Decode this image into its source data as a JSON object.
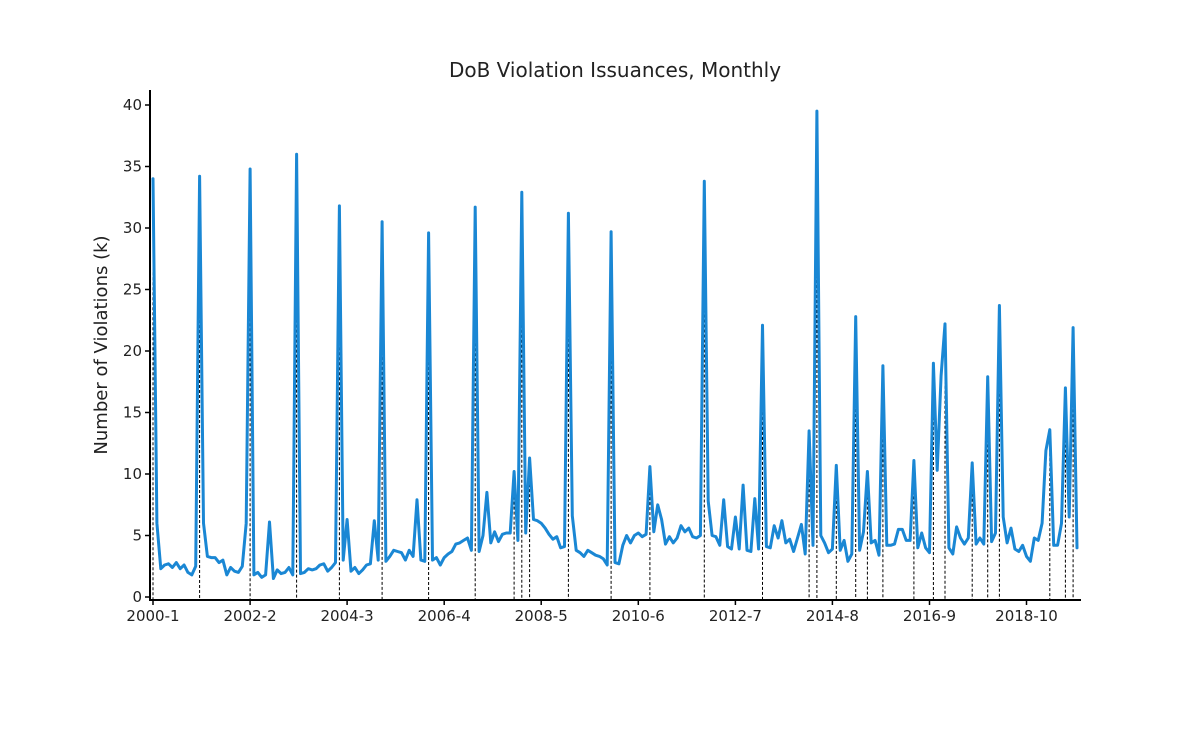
{
  "chart_data": {
    "type": "line",
    "title": "DoB Violation Issuances, Monthly",
    "xlabel": "",
    "ylabel": "Number of Violations (k)",
    "ylim": [
      0,
      41
    ],
    "y_ticks": [
      0,
      5,
      10,
      15,
      20,
      25,
      30,
      35,
      40
    ],
    "x_tick_labels": [
      "2000-1",
      "2002-2",
      "2004-3",
      "2006-4",
      "2008-5",
      "2010-6",
      "2012-7",
      "2014-8",
      "2016-9",
      "2018-10"
    ],
    "x_tick_months": [
      "2000-01",
      "2002-02",
      "2004-03",
      "2006-04",
      "2008-05",
      "2010-06",
      "2012-07",
      "2014-08",
      "2016-09",
      "2018-10"
    ],
    "line_color": "#1a87d4",
    "grid": false,
    "legend": "none",
    "series": [
      {
        "points": [
          [
            "2000-01",
            34
          ],
          [
            "2000-02",
            6
          ],
          [
            "2000-03",
            2.3
          ],
          [
            "2000-04",
            2.6
          ],
          [
            "2000-05",
            2.7
          ],
          [
            "2000-06",
            2.4
          ],
          [
            "2000-07",
            2.8
          ],
          [
            "2000-08",
            2.3
          ],
          [
            "2000-09",
            2.6
          ],
          [
            "2000-10",
            2.0
          ],
          [
            "2000-11",
            1.8
          ],
          [
            "2000-12",
            2.5
          ],
          [
            "2001-01",
            34.2
          ],
          [
            "2001-02",
            6
          ],
          [
            "2001-03",
            3.3
          ],
          [
            "2001-04",
            3.2
          ],
          [
            "2001-05",
            3.2
          ],
          [
            "2001-06",
            2.8
          ],
          [
            "2001-07",
            3.0
          ],
          [
            "2001-08",
            1.8
          ],
          [
            "2001-09",
            2.4
          ],
          [
            "2001-10",
            2.1
          ],
          [
            "2001-11",
            2.0
          ],
          [
            "2001-12",
            2.5
          ],
          [
            "2002-01",
            6
          ],
          [
            "2002-02",
            34.8
          ],
          [
            "2002-03",
            1.8
          ],
          [
            "2002-04",
            2.0
          ],
          [
            "2002-05",
            1.6
          ],
          [
            "2002-06",
            1.8
          ],
          [
            "2002-07",
            6.1
          ],
          [
            "2002-08",
            1.5
          ],
          [
            "2002-09",
            2.2
          ],
          [
            "2002-10",
            1.9
          ],
          [
            "2002-11",
            2.0
          ],
          [
            "2002-12",
            2.4
          ],
          [
            "2003-01",
            1.8
          ],
          [
            "2003-02",
            36
          ],
          [
            "2003-03",
            1.9
          ],
          [
            "2003-04",
            2.0
          ],
          [
            "2003-05",
            2.3
          ],
          [
            "2003-06",
            2.2
          ],
          [
            "2003-07",
            2.3
          ],
          [
            "2003-08",
            2.6
          ],
          [
            "2003-09",
            2.7
          ],
          [
            "2003-10",
            2.1
          ],
          [
            "2003-11",
            2.4
          ],
          [
            "2003-12",
            2.8
          ],
          [
            "2004-01",
            31.8
          ],
          [
            "2004-02",
            3.0
          ],
          [
            "2004-03",
            6.3
          ],
          [
            "2004-04",
            2.1
          ],
          [
            "2004-05",
            2.4
          ],
          [
            "2004-06",
            1.9
          ],
          [
            "2004-07",
            2.2
          ],
          [
            "2004-08",
            2.6
          ],
          [
            "2004-09",
            2.7
          ],
          [
            "2004-10",
            6.2
          ],
          [
            "2004-11",
            3.0
          ],
          [
            "2004-12",
            30.5
          ],
          [
            "2005-01",
            2.9
          ],
          [
            "2005-02",
            3.3
          ],
          [
            "2005-03",
            3.8
          ],
          [
            "2005-04",
            3.7
          ],
          [
            "2005-05",
            3.6
          ],
          [
            "2005-06",
            3.0
          ],
          [
            "2005-07",
            3.8
          ],
          [
            "2005-08",
            3.3
          ],
          [
            "2005-09",
            7.9
          ],
          [
            "2005-10",
            3.0
          ],
          [
            "2005-11",
            2.9
          ],
          [
            "2005-12",
            29.6
          ],
          [
            "2006-01",
            3.0
          ],
          [
            "2006-02",
            3.2
          ],
          [
            "2006-03",
            2.6
          ],
          [
            "2006-04",
            3.2
          ],
          [
            "2006-05",
            3.5
          ],
          [
            "2006-06",
            3.7
          ],
          [
            "2006-07",
            4.3
          ],
          [
            "2006-08",
            4.4
          ],
          [
            "2006-09",
            4.6
          ],
          [
            "2006-10",
            4.8
          ],
          [
            "2006-11",
            3.8
          ],
          [
            "2006-12",
            31.7
          ],
          [
            "2007-01",
            3.7
          ],
          [
            "2007-02",
            5.0
          ],
          [
            "2007-03",
            8.5
          ],
          [
            "2007-04",
            4.4
          ],
          [
            "2007-05",
            5.3
          ],
          [
            "2007-06",
            4.5
          ],
          [
            "2007-07",
            5.1
          ],
          [
            "2007-08",
            5.2
          ],
          [
            "2007-09",
            5.2
          ],
          [
            "2007-10",
            10.2
          ],
          [
            "2007-11",
            4.6
          ],
          [
            "2007-12",
            32.9
          ],
          [
            "2008-01",
            5.2
          ],
          [
            "2008-02",
            11.3
          ],
          [
            "2008-03",
            6.3
          ],
          [
            "2008-04",
            6.2
          ],
          [
            "2008-05",
            6.0
          ],
          [
            "2008-06",
            5.6
          ],
          [
            "2008-07",
            5.1
          ],
          [
            "2008-08",
            4.7
          ],
          [
            "2008-09",
            4.9
          ],
          [
            "2008-10",
            4.0
          ],
          [
            "2008-11",
            4.1
          ],
          [
            "2008-12",
            31.2
          ],
          [
            "2009-01",
            6.6
          ],
          [
            "2009-02",
            3.8
          ],
          [
            "2009-03",
            3.6
          ],
          [
            "2009-04",
            3.3
          ],
          [
            "2009-05",
            3.8
          ],
          [
            "2009-06",
            3.6
          ],
          [
            "2009-07",
            3.4
          ],
          [
            "2009-08",
            3.3
          ],
          [
            "2009-09",
            3.1
          ],
          [
            "2009-10",
            2.6
          ],
          [
            "2009-11",
            29.7
          ],
          [
            "2009-12",
            2.8
          ],
          [
            "2010-01",
            2.7
          ],
          [
            "2010-02",
            4.2
          ],
          [
            "2010-03",
            5.0
          ],
          [
            "2010-04",
            4.4
          ],
          [
            "2010-05",
            5.0
          ],
          [
            "2010-06",
            5.2
          ],
          [
            "2010-07",
            4.9
          ],
          [
            "2010-08",
            5.1
          ],
          [
            "2010-09",
            10.6
          ],
          [
            "2010-10",
            5.3
          ],
          [
            "2010-11",
            7.5
          ],
          [
            "2010-12",
            6.3
          ],
          [
            "2011-01",
            4.3
          ],
          [
            "2011-02",
            4.9
          ],
          [
            "2011-03",
            4.4
          ],
          [
            "2011-04",
            4.8
          ],
          [
            "2011-05",
            5.8
          ],
          [
            "2011-06",
            5.3
          ],
          [
            "2011-07",
            5.6
          ],
          [
            "2011-08",
            4.9
          ],
          [
            "2011-09",
            4.8
          ],
          [
            "2011-10",
            5.0
          ],
          [
            "2011-11",
            33.8
          ],
          [
            "2011-12",
            7.8
          ],
          [
            "2012-01",
            5.0
          ],
          [
            "2012-02",
            4.9
          ],
          [
            "2012-03",
            4.2
          ],
          [
            "2012-04",
            7.9
          ],
          [
            "2012-05",
            4.1
          ],
          [
            "2012-06",
            3.9
          ],
          [
            "2012-07",
            6.5
          ],
          [
            "2012-08",
            3.9
          ],
          [
            "2012-09",
            9.1
          ],
          [
            "2012-10",
            3.8
          ],
          [
            "2012-11",
            3.7
          ],
          [
            "2012-12",
            8.0
          ],
          [
            "2013-01",
            3.9
          ],
          [
            "2013-02",
            22.1
          ],
          [
            "2013-03",
            4.1
          ],
          [
            "2013-04",
            4.0
          ],
          [
            "2013-05",
            5.8
          ],
          [
            "2013-06",
            4.8
          ],
          [
            "2013-07",
            6.2
          ],
          [
            "2013-08",
            4.4
          ],
          [
            "2013-09",
            4.7
          ],
          [
            "2013-10",
            3.7
          ],
          [
            "2013-11",
            4.8
          ],
          [
            "2013-12",
            5.9
          ],
          [
            "2014-01",
            3.5
          ],
          [
            "2014-02",
            13.5
          ],
          [
            "2014-03",
            4.2
          ],
          [
            "2014-04",
            39.5
          ],
          [
            "2014-05",
            5.0
          ],
          [
            "2014-06",
            4.4
          ],
          [
            "2014-07",
            3.6
          ],
          [
            "2014-08",
            3.9
          ],
          [
            "2014-09",
            10.7
          ],
          [
            "2014-10",
            3.8
          ],
          [
            "2014-11",
            4.6
          ],
          [
            "2014-12",
            2.9
          ],
          [
            "2015-01",
            3.5
          ],
          [
            "2015-02",
            22.8
          ],
          [
            "2015-03",
            3.8
          ],
          [
            "2015-04",
            5.3
          ],
          [
            "2015-05",
            10.2
          ],
          [
            "2015-06",
            4.4
          ],
          [
            "2015-07",
            4.6
          ],
          [
            "2015-08",
            3.4
          ],
          [
            "2015-09",
            18.8
          ],
          [
            "2015-10",
            4.2
          ],
          [
            "2015-11",
            4.2
          ],
          [
            "2015-12",
            4.3
          ],
          [
            "2016-01",
            5.5
          ],
          [
            "2016-02",
            5.5
          ],
          [
            "2016-03",
            4.6
          ],
          [
            "2016-04",
            4.6
          ],
          [
            "2016-05",
            11.1
          ],
          [
            "2016-06",
            4.0
          ],
          [
            "2016-07",
            5.2
          ],
          [
            "2016-08",
            4.0
          ],
          [
            "2016-09",
            3.6
          ],
          [
            "2016-10",
            19.0
          ],
          [
            "2016-11",
            10.3
          ],
          [
            "2016-12",
            18.0
          ],
          [
            "2017-01",
            22.2
          ],
          [
            "2017-02",
            4.0
          ],
          [
            "2017-03",
            3.5
          ],
          [
            "2017-04",
            5.7
          ],
          [
            "2017-05",
            4.8
          ],
          [
            "2017-06",
            4.3
          ],
          [
            "2017-07",
            4.8
          ],
          [
            "2017-08",
            10.9
          ],
          [
            "2017-09",
            4.3
          ],
          [
            "2017-10",
            4.8
          ],
          [
            "2017-11",
            4.3
          ],
          [
            "2017-12",
            17.9
          ],
          [
            "2018-01",
            4.5
          ],
          [
            "2018-02",
            5.2
          ],
          [
            "2018-03",
            23.7
          ],
          [
            "2018-04",
            6.5
          ],
          [
            "2018-05",
            4.4
          ],
          [
            "2018-06",
            5.6
          ],
          [
            "2018-07",
            3.9
          ],
          [
            "2018-08",
            3.7
          ],
          [
            "2018-09",
            4.2
          ],
          [
            "2018-10",
            3.3
          ],
          [
            "2018-11",
            2.9
          ],
          [
            "2018-12",
            4.8
          ],
          [
            "2019-01",
            4.6
          ],
          [
            "2019-02",
            6.0
          ],
          [
            "2019-03",
            11.9
          ],
          [
            "2019-04",
            13.6
          ],
          [
            "2019-05",
            4.2
          ],
          [
            "2019-06",
            4.2
          ],
          [
            "2019-07",
            6.0
          ],
          [
            "2019-08",
            17.0
          ],
          [
            "2019-09",
            6.5
          ],
          [
            "2019-10",
            21.9
          ],
          [
            "2019-11",
            4.0
          ]
        ]
      }
    ]
  }
}
